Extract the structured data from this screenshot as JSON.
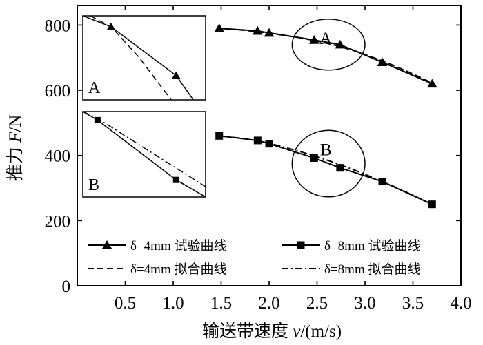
{
  "chart_data": {
    "type": "line",
    "xlabel_prefix": "输送带速度 ",
    "xlabel_var": "v",
    "xlabel_unit": "/(m/s)",
    "ylabel_prefix": "推力 ",
    "ylabel_var": "F",
    "ylabel_unit": "/N",
    "xlim": [
      0,
      4.0
    ],
    "ylim": [
      0,
      860
    ],
    "xticks": [
      0.5,
      1.0,
      1.5,
      2.0,
      2.5,
      3.0,
      3.5,
      4.0
    ],
    "xtick_labels": [
      "0.5",
      "1.0",
      "1.5",
      "2.0",
      "2.5",
      "3.0",
      "3.5",
      "4.0"
    ],
    "yticks": [
      0,
      200,
      400,
      600,
      800
    ],
    "ytick_labels": [
      "0",
      "200",
      "400",
      "600",
      "800"
    ],
    "series": [
      {
        "id": "d4-test",
        "name": "δ=4mm 试验曲线",
        "marker": "triangle",
        "dash": "solid",
        "x": [
          1.48,
          1.88,
          2.0,
          2.47,
          2.74,
          3.18,
          3.7
        ],
        "y": [
          790,
          782,
          776,
          754,
          740,
          686,
          620
        ]
      },
      {
        "id": "d8-test",
        "name": "δ=8mm 试验曲线",
        "marker": "square",
        "dash": "solid",
        "x": [
          1.48,
          1.88,
          2.0,
          2.47,
          2.74,
          3.18,
          3.7
        ],
        "y": [
          460,
          446,
          436,
          392,
          362,
          320,
          250
        ]
      },
      {
        "id": "d4-fit",
        "name": "δ=4mm 拟合曲线",
        "marker": "none",
        "dash": "dashed",
        "x": [
          1.48,
          1.7,
          1.9,
          2.1,
          2.3,
          2.5,
          2.7,
          2.9,
          3.1,
          3.3,
          3.5,
          3.7
        ],
        "y": [
          790,
          785,
          779,
          771,
          762,
          751,
          737,
          720,
          699,
          676,
          650,
          622
        ]
      },
      {
        "id": "d8-fit",
        "name": "δ=8mm 拟合曲线",
        "marker": "none",
        "dash": "dashdot",
        "x": [
          1.48,
          1.7,
          1.9,
          2.1,
          2.3,
          2.5,
          2.7,
          2.9,
          3.1,
          3.3,
          3.5,
          3.7
        ],
        "y": [
          460,
          453,
          444,
          430,
          414,
          396,
          376,
          354,
          330,
          305,
          278,
          250
        ]
      }
    ],
    "annotations": [
      {
        "label": "A",
        "cx": 2.62,
        "cy": 740,
        "rx": 0.38,
        "ry": 78
      },
      {
        "label": "B",
        "cx": 2.62,
        "cy": 375,
        "rx": 0.38,
        "ry": 102
      }
    ],
    "insets": [
      {
        "label": "A",
        "xlim": [
          0,
          10
        ],
        "ylim": [
          0,
          10
        ],
        "test_line": {
          "x": [
            0,
            2.3,
            7.6,
            9.0
          ],
          "y": [
            10,
            8.7,
            2.9,
            0
          ]
        },
        "fit_line": {
          "x": [
            0.6,
            2.3,
            4.5,
            7.2
          ],
          "y": [
            10,
            8.7,
            5.2,
            0
          ]
        },
        "markers": [
          {
            "x": 2.3,
            "y": 8.7
          },
          {
            "x": 7.6,
            "y": 2.9
          }
        ]
      },
      {
        "label": "B",
        "xlim": [
          0,
          10
        ],
        "ylim": [
          0,
          10
        ],
        "test_line": {
          "x": [
            0,
            1.2,
            7.6,
            10
          ],
          "y": [
            10,
            9.0,
            2.0,
            0
          ]
        },
        "fit_line": {
          "x": [
            0,
            1.2,
            10
          ],
          "y": [
            10,
            9.2,
            1.2
          ]
        },
        "markers": [
          {
            "x": 1.2,
            "y": 9.0
          },
          {
            "x": 7.6,
            "y": 2.0
          }
        ]
      }
    ],
    "legend": {
      "placement": "bottom",
      "columns": 2
    }
  }
}
